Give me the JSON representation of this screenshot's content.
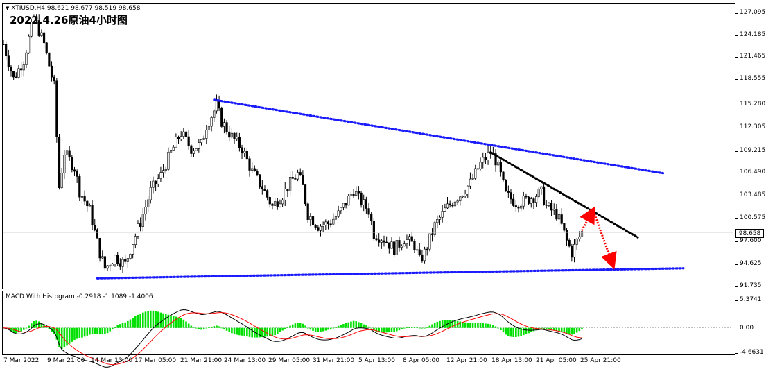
{
  "header": {
    "symbol_info": "XTIUSD,H4  98.621 98.677 98.519 98.658",
    "title": "2022.4.26原油4小时图"
  },
  "indicator": {
    "label": "MACD With Histogram -0.2918 -1.1089 -1.4006"
  },
  "current_price_label": "98.658",
  "colors": {
    "bull_candle": "#ffffff",
    "bear_candle": "#000000",
    "trendline_blue": "#1a1aff",
    "trendline_black": "#000000",
    "arrow_red": "#ff0000",
    "histogram": "#00e000",
    "macd_line": "#000000",
    "signal_line": "#ff0000"
  },
  "chart_data": [
    {
      "type": "candlestick",
      "title": "2022.4.26原油4小时图",
      "series_name": "XTIUSD,H4",
      "y_ticks": [
        "127.095",
        "124.185",
        "121.465",
        "118.555",
        "115.280",
        "112.305",
        "109.215",
        "106.490",
        "103.485",
        "100.575",
        "97.600",
        "94.625",
        "91.735"
      ],
      "ylim": [
        91.735,
        127.095
      ],
      "x_ticks": [
        "7 Mar 2022",
        "9 Mar 21:00",
        "14 Mar 13:00",
        "17 Mar 05:00",
        "21 Mar 21:00",
        "24 Mar 13:00",
        "29 Mar 05:00",
        "31 Mar 21:00",
        "5 Apr 13:00",
        "8 Apr 05:00",
        "12 Apr 21:00",
        "18 Apr 13:00",
        "21 Apr 05:00",
        "25 Apr 21:00"
      ],
      "last_close": 98.658,
      "close_path": [
        [
          0,
          123.0
        ],
        [
          4,
          118.5
        ],
        [
          8,
          121.0
        ],
        [
          12,
          126.5
        ],
        [
          16,
          123.0
        ],
        [
          20,
          117.5
        ],
        [
          22,
          104.5
        ],
        [
          24,
          109.0
        ],
        [
          28,
          107.0
        ],
        [
          30,
          104.0
        ],
        [
          34,
          101.5
        ],
        [
          38,
          96.0
        ],
        [
          40,
          94.0
        ],
        [
          44,
          95.5
        ],
        [
          48,
          94.5
        ],
        [
          50,
          96.5
        ],
        [
          54,
          100.0
        ],
        [
          58,
          104.0
        ],
        [
          62,
          106.0
        ],
        [
          66,
          109.0
        ],
        [
          70,
          111.5
        ],
        [
          74,
          109.5
        ],
        [
          78,
          110.0
        ],
        [
          80,
          112.5
        ],
        [
          84,
          115.0
        ],
        [
          86,
          113.0
        ],
        [
          90,
          111.0
        ],
        [
          94,
          109.5
        ],
        [
          98,
          106.5
        ],
        [
          102,
          104.5
        ],
        [
          106,
          102.0
        ],
        [
          110,
          103.5
        ],
        [
          114,
          105.5
        ],
        [
          116,
          106.2
        ],
        [
          118,
          104.5
        ],
        [
          120,
          101.0
        ],
        [
          124,
          99.5
        ],
        [
          128,
          99.8
        ],
        [
          132,
          101.0
        ],
        [
          136,
          103.0
        ],
        [
          138,
          104.2
        ],
        [
          140,
          103.0
        ],
        [
          144,
          101.5
        ],
        [
          146,
          98.5
        ],
        [
          150,
          97.8
        ],
        [
          154,
          96.5
        ],
        [
          158,
          97.8
        ],
        [
          162,
          97.0
        ],
        [
          164,
          95.0
        ],
        [
          166,
          96.0
        ],
        [
          170,
          99.5
        ],
        [
          174,
          101.5
        ],
        [
          178,
          103.0
        ],
        [
          180,
          103.5
        ],
        [
          184,
          105.0
        ],
        [
          188,
          107.5
        ],
        [
          192,
          109.0
        ],
        [
          194,
          108.0
        ],
        [
          196,
          106.0
        ],
        [
          198,
          103.5
        ],
        [
          202,
          102.5
        ],
        [
          206,
          102.8
        ],
        [
          210,
          103.5
        ],
        [
          212,
          103.8
        ],
        [
          214,
          102.0
        ],
        [
          218,
          101.0
        ],
        [
          220,
          99.5
        ],
        [
          222,
          97.5
        ],
        [
          224,
          96.0
        ],
        [
          226,
          97.5
        ],
        [
          228,
          98.658
        ]
      ],
      "trendlines": [
        {
          "name": "upper resistance",
          "from": [
            83,
            115.8
          ],
          "to": [
            260,
            106.3
          ]
        },
        {
          "name": "lower support",
          "from": [
            37,
            92.7
          ],
          "to": [
            268,
            94.0
          ]
        },
        {
          "name": "short resistance",
          "from": [
            192,
            109.0
          ],
          "to": [
            250,
            98.0
          ]
        }
      ],
      "arrows": [
        {
          "from": [
            228,
            98.9
          ],
          "to": [
            232,
            101.3
          ]
        },
        {
          "from": [
            233,
            101.0
          ],
          "to": [
            240,
            94.6
          ]
        }
      ]
    },
    {
      "type": "macd",
      "title": "MACD With Histogram",
      "values": {
        "macd": -0.2918,
        "signal": -1.1089,
        "histogram": -1.4006
      },
      "y_ticks": [
        "5.3741",
        "0.00",
        "-4.6631"
      ],
      "ylim": [
        -4.6631,
        5.3741
      ]
    }
  ]
}
